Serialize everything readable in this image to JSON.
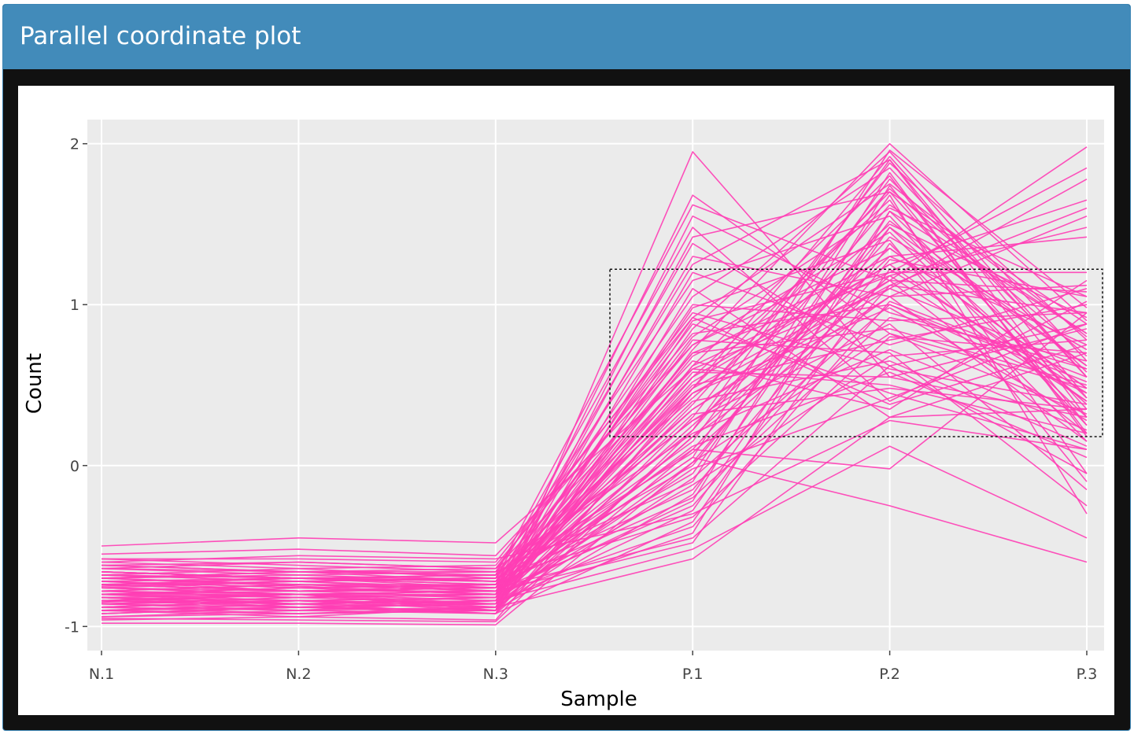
{
  "header": {
    "title": "Parallel coordinate plot"
  },
  "chart_data": {
    "type": "line",
    "subtype": "parallel-coordinates",
    "title": "",
    "xlabel": "Sample",
    "ylabel": "Count",
    "categories": [
      "N.1",
      "N.2",
      "N.3",
      "P.1",
      "P.2",
      "P.3"
    ],
    "yticks": [
      -1,
      0,
      1,
      2
    ],
    "ylim": [
      -1.15,
      2.15
    ],
    "grid": true,
    "legend": "none",
    "line_color": "#ff3eb5",
    "panel_background": "#ebebeb",
    "selection_box": {
      "x_from": "between N.3 and P.1",
      "x_to": "P.3",
      "y_range": [
        0.18,
        1.22
      ]
    },
    "series": [
      {
        "values": [
          -0.85,
          -0.8,
          -0.9,
          1.95,
          0.55,
          0.3
        ]
      },
      {
        "values": [
          -0.7,
          -0.75,
          -0.8,
          1.68,
          0.82,
          0.48
        ]
      },
      {
        "values": [
          -0.62,
          -0.66,
          -0.68,
          1.62,
          1.15,
          0.2
        ]
      },
      {
        "values": [
          -0.88,
          -0.84,
          -0.86,
          1.55,
          0.95,
          0.6
        ]
      },
      {
        "values": [
          -0.75,
          -0.72,
          -0.7,
          1.48,
          0.4,
          1.02
        ]
      },
      {
        "values": [
          -0.8,
          -0.86,
          -0.82,
          1.42,
          1.7,
          0.35
        ]
      },
      {
        "values": [
          -0.66,
          -0.7,
          -0.74,
          1.38,
          0.62,
          0.88
        ]
      },
      {
        "values": [
          -0.92,
          -0.88,
          -0.84,
          1.3,
          1.05,
          0.15
        ]
      },
      {
        "values": [
          -0.72,
          -0.78,
          -0.76,
          1.25,
          1.9,
          0.42
        ]
      },
      {
        "values": [
          -0.84,
          -0.8,
          -0.88,
          1.2,
          0.75,
          1.1
        ]
      },
      {
        "values": [
          -0.58,
          -0.62,
          -0.66,
          1.15,
          1.55,
          0.25
        ]
      },
      {
        "values": [
          -0.9,
          -0.86,
          -0.92,
          1.1,
          0.3,
          0.7
        ]
      },
      {
        "values": [
          -0.68,
          -0.72,
          -0.7,
          1.05,
          1.85,
          0.55
        ]
      },
      {
        "values": [
          -0.78,
          -0.82,
          -0.8,
          1.0,
          0.9,
          0.95
        ]
      },
      {
        "values": [
          -0.86,
          -0.9,
          -0.84,
          0.98,
          1.4,
          -0.1
        ]
      },
      {
        "values": [
          -0.64,
          -0.6,
          -0.64,
          0.95,
          0.6,
          0.38
        ]
      },
      {
        "values": [
          -0.74,
          -0.7,
          -0.76,
          0.92,
          1.75,
          0.8
        ]
      },
      {
        "values": [
          -0.82,
          -0.88,
          -0.9,
          0.9,
          1.2,
          1.2
        ]
      },
      {
        "values": [
          -0.7,
          -0.66,
          -0.72,
          0.88,
          0.45,
          0.1
        ]
      },
      {
        "values": [
          -0.94,
          -0.92,
          -0.88,
          0.85,
          1.95,
          0.65
        ]
      },
      {
        "values": [
          -0.6,
          -0.64,
          -0.62,
          0.82,
          1.0,
          0.45
        ]
      },
      {
        "values": [
          -0.76,
          -0.8,
          -0.78,
          0.8,
          1.6,
          1.05
        ]
      },
      {
        "values": [
          -0.84,
          -0.8,
          -0.86,
          0.78,
          0.7,
          -0.25
        ]
      },
      {
        "values": [
          -0.66,
          -0.7,
          -0.68,
          0.75,
          1.45,
          0.3
        ]
      },
      {
        "values": [
          -0.88,
          -0.84,
          -0.9,
          0.72,
          2.0,
          0.9
        ]
      },
      {
        "values": [
          -0.72,
          -0.76,
          -0.74,
          0.7,
          0.85,
          0.5
        ]
      },
      {
        "values": [
          -0.8,
          -0.78,
          -0.82,
          0.68,
          1.3,
          0.75
        ]
      },
      {
        "values": [
          -0.62,
          -0.66,
          -0.64,
          0.65,
          0.35,
          1.15
        ]
      },
      {
        "values": [
          -0.9,
          -0.94,
          -0.88,
          0.62,
          1.8,
          0.2
        ]
      },
      {
        "values": [
          -0.74,
          -0.7,
          -0.72,
          0.6,
          1.1,
          0.6
        ]
      },
      {
        "values": [
          -0.82,
          -0.86,
          -0.84,
          0.58,
          0.55,
          0.85
        ]
      },
      {
        "values": [
          -0.68,
          -0.64,
          -0.7,
          0.55,
          1.65,
          -0.05
        ]
      },
      {
        "values": [
          -0.86,
          -0.82,
          -0.8,
          0.52,
          1.25,
          0.4
        ]
      },
      {
        "values": [
          -0.7,
          -0.74,
          -0.76,
          0.5,
          0.78,
          1.0
        ]
      },
      {
        "values": [
          -0.78,
          -0.8,
          -0.82,
          0.48,
          1.92,
          0.55
        ]
      },
      {
        "values": [
          -0.92,
          -0.88,
          -0.92,
          0.45,
          0.98,
          0.28
        ]
      },
      {
        "values": [
          -0.64,
          -0.68,
          -0.66,
          0.42,
          1.5,
          0.92
        ]
      },
      {
        "values": [
          -0.76,
          -0.72,
          -0.78,
          0.4,
          0.65,
          0.12
        ]
      },
      {
        "values": [
          -0.84,
          -0.88,
          -0.86,
          0.38,
          1.72,
          0.68
        ]
      },
      {
        "values": [
          -0.66,
          -0.7,
          -0.72,
          0.35,
          1.15,
          1.08
        ]
      },
      {
        "values": [
          -0.8,
          -0.76,
          -0.8,
          0.32,
          0.48,
          0.35
        ]
      },
      {
        "values": [
          -0.9,
          -0.92,
          -0.9,
          0.3,
          1.88,
          0.78
        ]
      },
      {
        "values": [
          -0.7,
          -0.66,
          -0.68,
          0.28,
          0.88,
          -0.15
        ]
      },
      {
        "values": [
          -0.82,
          -0.86,
          -0.84,
          0.25,
          1.35,
          0.48
        ]
      },
      {
        "values": [
          -0.74,
          -0.78,
          -0.76,
          0.22,
          1.62,
          0.82
        ]
      },
      {
        "values": [
          -0.62,
          -0.6,
          -0.64,
          0.2,
          0.72,
          0.22
        ]
      },
      {
        "values": [
          -0.88,
          -0.84,
          -0.88,
          0.18,
          1.05,
          1.12
        ]
      },
      {
        "values": [
          -0.72,
          -0.76,
          -0.74,
          0.15,
          1.78,
          0.58
        ]
      },
      {
        "values": [
          -0.8,
          -0.82,
          -0.8,
          0.12,
          0.58,
          0.05
        ]
      },
      {
        "values": [
          -0.94,
          -0.9,
          -0.92,
          0.1,
          1.42,
          0.72
        ]
      },
      {
        "values": [
          -0.66,
          -0.7,
          -0.68,
          0.08,
          1.18,
          0.4
        ]
      },
      {
        "values": [
          -0.78,
          -0.74,
          -0.78,
          0.05,
          1.96,
          0.98
        ]
      },
      {
        "values": [
          -0.86,
          -0.88,
          -0.86,
          0.02,
          0.82,
          0.32
        ]
      },
      {
        "values": [
          -0.68,
          -0.72,
          -0.7,
          0.0,
          1.52,
          0.62
        ]
      },
      {
        "values": [
          -0.84,
          -0.8,
          -0.84,
          -0.02,
          0.42,
          0.88
        ]
      },
      {
        "values": [
          -0.74,
          -0.78,
          -0.76,
          -0.05,
          1.68,
          -0.3
        ]
      },
      {
        "values": [
          -0.9,
          -0.86,
          -0.88,
          -0.08,
          1.0,
          0.52
        ]
      },
      {
        "values": [
          -0.64,
          -0.66,
          -0.66,
          -0.1,
          1.82,
          0.18
        ]
      },
      {
        "values": [
          -0.8,
          -0.84,
          -0.82,
          -0.12,
          0.68,
          0.78
        ]
      },
      {
        "values": [
          -0.72,
          -0.7,
          -0.72,
          -0.15,
          1.28,
          1.05
        ]
      },
      {
        "values": [
          -0.88,
          -0.92,
          -0.9,
          -0.18,
          1.58,
          0.42
        ]
      },
      {
        "values": [
          -0.7,
          -0.74,
          -0.74,
          -0.2,
          0.92,
          0.65
        ]
      },
      {
        "values": [
          -0.82,
          -0.8,
          -0.8,
          -0.22,
          1.74,
          0.25
        ]
      },
      {
        "values": [
          -0.76,
          -0.78,
          -0.78,
          -0.25,
          1.12,
          0.95
        ]
      },
      {
        "values": [
          -0.86,
          -0.84,
          -0.86,
          -0.28,
          1.48,
          0.38
        ]
      },
      {
        "values": [
          -0.68,
          -0.7,
          -0.7,
          -0.32,
          0.8,
          0.7
        ]
      },
      {
        "values": [
          -0.92,
          -0.88,
          -0.92,
          -0.35,
          1.38,
          0.15
        ]
      },
      {
        "values": [
          -0.78,
          -0.82,
          -0.8,
          -0.38,
          1.02,
          0.55
        ]
      },
      {
        "values": [
          -0.84,
          -0.86,
          -0.84,
          -0.42,
          1.58,
          0.82
        ]
      },
      {
        "values": [
          -0.74,
          -0.72,
          -0.76,
          -0.45,
          0.62,
          -0.05
        ]
      },
      {
        "values": [
          -0.8,
          -0.8,
          -0.78,
          -0.48,
          1.22,
          0.45
        ]
      },
      {
        "values": [
          -0.88,
          -0.9,
          -0.88,
          -0.58,
          0.3,
          0.35
        ]
      },
      {
        "values": [
          -0.7,
          -0.68,
          -0.72,
          0.48,
          1.15,
          1.98
        ]
      },
      {
        "values": [
          -0.82,
          -0.84,
          -0.82,
          0.62,
          1.2,
          1.85
        ]
      },
      {
        "values": [
          -0.76,
          -0.8,
          -0.78,
          0.35,
          1.1,
          1.78
        ]
      },
      {
        "values": [
          -0.86,
          -0.82,
          -0.86,
          0.55,
          1.25,
          1.65
        ]
      },
      {
        "values": [
          -0.66,
          -0.7,
          -0.68,
          0.28,
          1.05,
          1.55
        ]
      },
      {
        "values": [
          -0.8,
          -0.76,
          -0.8,
          0.7,
          1.18,
          1.48
        ]
      },
      {
        "values": [
          -0.9,
          -0.88,
          -0.9,
          0.18,
          1.3,
          1.42
        ]
      },
      {
        "values": [
          -0.74,
          -0.78,
          -0.74,
          0.45,
          1.12,
          1.6
        ]
      },
      {
        "values": [
          -0.84,
          -0.86,
          -0.84,
          -0.52,
          0.12,
          -0.45
        ]
      },
      {
        "values": [
          -0.78,
          -0.74,
          -0.78,
          0.05,
          -0.25,
          -0.6
        ]
      },
      {
        "values": [
          -0.72,
          -0.7,
          -0.74,
          0.1,
          -0.02,
          0.95
        ]
      },
      {
        "values": [
          -0.5,
          -0.45,
          -0.48,
          0.6,
          0.5,
          0.2
        ]
      },
      {
        "values": [
          -0.55,
          -0.52,
          -0.56,
          0.75,
          1.35,
          0.48
        ]
      },
      {
        "values": [
          -0.98,
          -0.98,
          -0.99,
          0.02,
          1.48,
          0.62
        ]
      },
      {
        "values": [
          -0.95,
          -0.96,
          -0.97,
          0.22,
          1.9,
          0.3
        ]
      },
      {
        "values": [
          -0.58,
          -0.58,
          -0.6,
          0.92,
          0.38,
          0.75
        ]
      },
      {
        "values": [
          -0.6,
          -0.56,
          -0.58,
          -0.3,
          0.28,
          0.1
        ]
      },
      {
        "values": [
          -0.96,
          -0.94,
          -0.96,
          0.48,
          1.7,
          0.88
        ]
      }
    ]
  }
}
